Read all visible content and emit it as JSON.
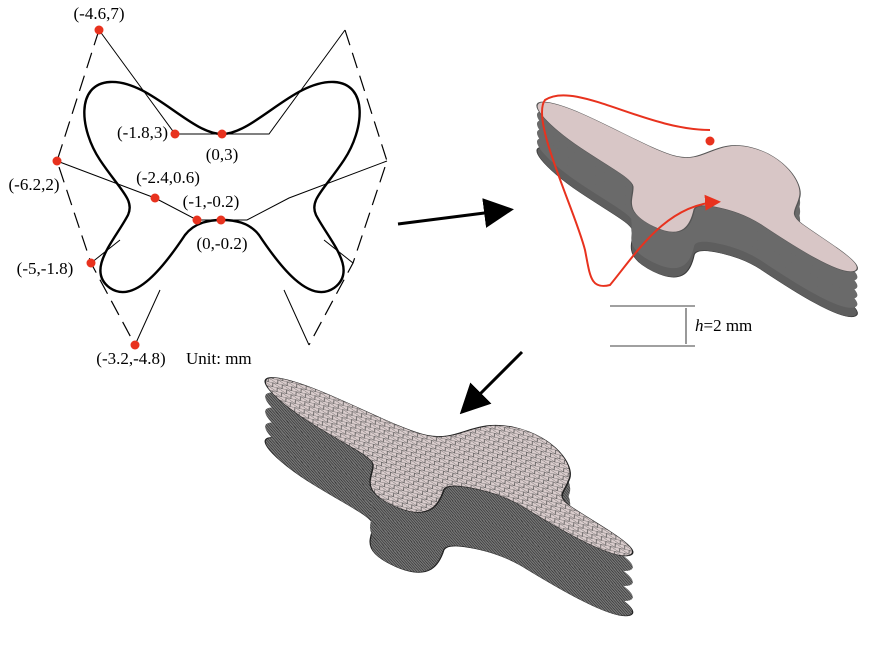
{
  "points": [
    {
      "label": "(-4.6,7)"
    },
    {
      "label": "(-1.8,3)"
    },
    {
      "label": "(0,3)"
    },
    {
      "label": "(-6.2,2)"
    },
    {
      "label": "(-2.4,0.6)"
    },
    {
      "label": "(-1,-0.2)"
    },
    {
      "label": "(0,-0.2)"
    },
    {
      "label": "(-5,-1.8)"
    },
    {
      "label": "(-3.2,-4.8)"
    }
  ],
  "unit": "Unit: mm",
  "height_label": {
    "symbol": "h",
    "text": "=2 mm"
  }
}
